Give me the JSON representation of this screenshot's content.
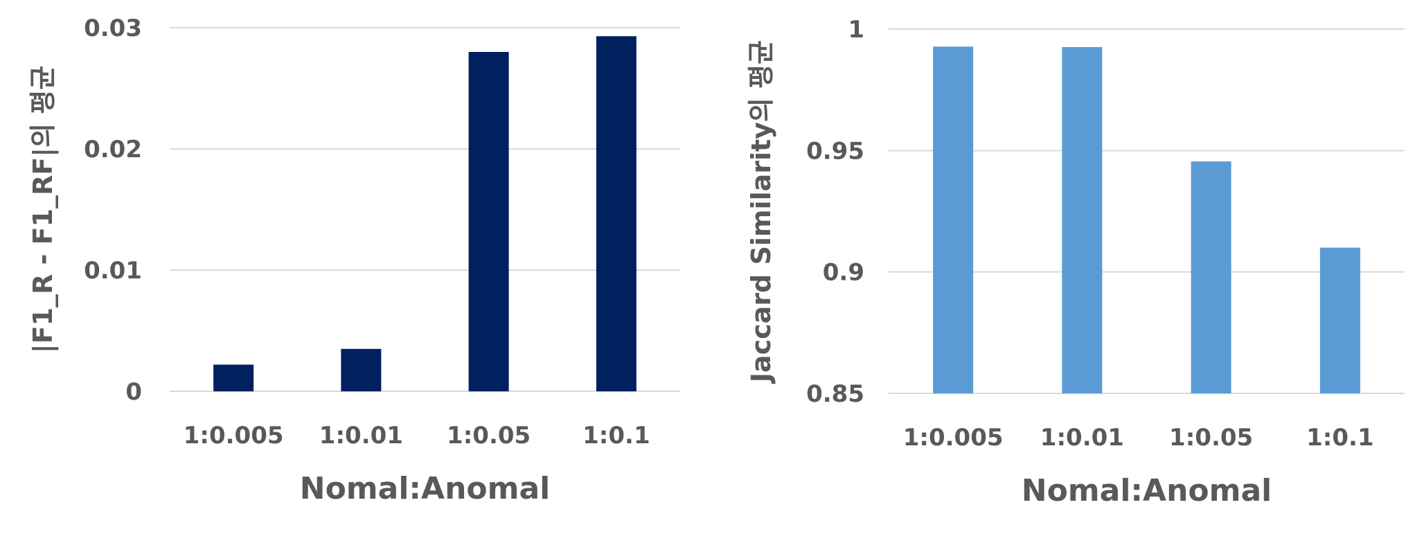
{
  "chart_data": [
    {
      "type": "bar",
      "categories": [
        "1:0.005",
        "1:0.01",
        "1:0.05",
        "1:0.1"
      ],
      "values": [
        0.0022,
        0.0035,
        0.028,
        0.0293
      ],
      "ylim": [
        0,
        0.03
      ],
      "yticks": [
        "0",
        "0.01",
        "0.02",
        "0.03"
      ],
      "ytick_values": [
        0,
        0.01,
        0.02,
        0.03
      ],
      "xlabel": "Nomal:Anomal",
      "ylabel": "|F1_R - F1_RF|의 평균",
      "color": "#002060",
      "grid": true
    },
    {
      "type": "bar",
      "categories": [
        "1:0.005",
        "1:0.01",
        "1:0.05",
        "1:0.1"
      ],
      "values": [
        0.9928,
        0.9926,
        0.9455,
        0.91
      ],
      "ylim": [
        0.85,
        1
      ],
      "yticks": [
        "0.85",
        "0.9",
        "0.95",
        "1"
      ],
      "ytick_values": [
        0.85,
        0.9,
        0.95,
        1
      ],
      "xlabel": "Nomal:Anomal",
      "ylabel": "Jaccard Similarity의 평균",
      "color": "#5b9bd5",
      "grid": true
    }
  ]
}
